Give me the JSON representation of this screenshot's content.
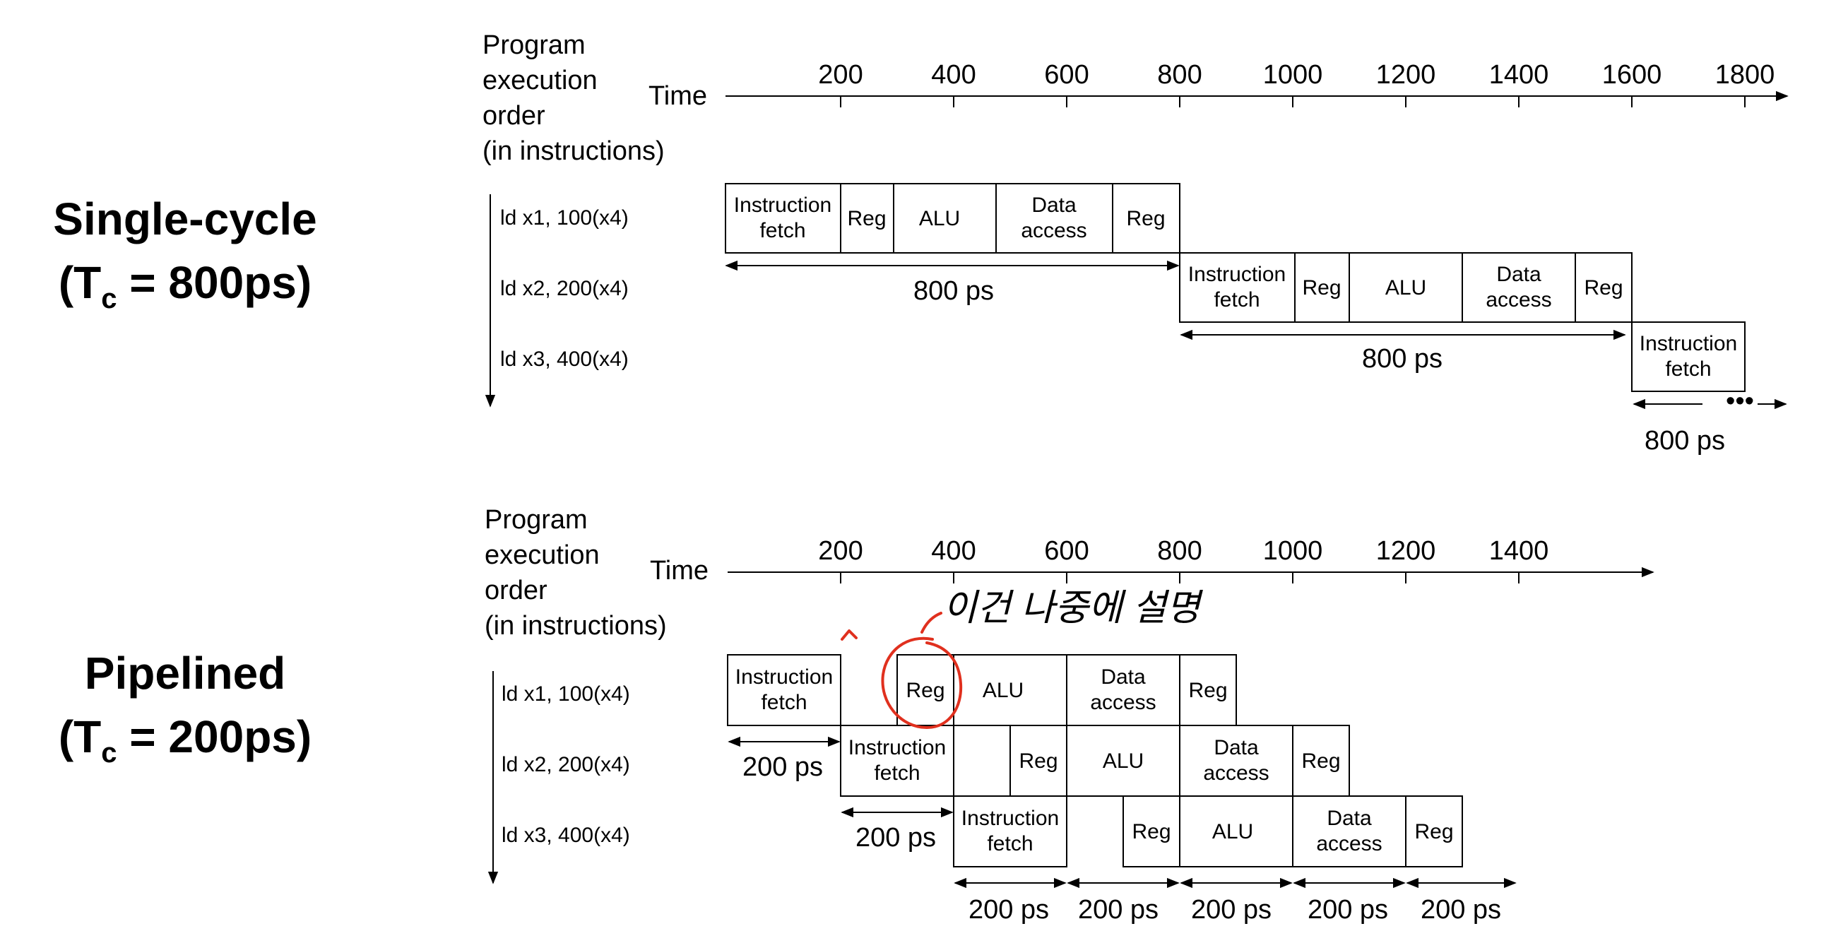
{
  "single_cycle": {
    "label": "Single-cycle",
    "tc_prefix": "(T",
    "tc_sub": "c",
    "tc_suffix": " = 800ps)",
    "header_lines": [
      "Program",
      "execution",
      "order",
      "(in instructions)"
    ],
    "time_label": "Time",
    "ticks": [
      "200",
      "400",
      "600",
      "800",
      "1000",
      "1200",
      "1400",
      "1600",
      "1800"
    ],
    "instructions": [
      "ld x1, 100(x4)",
      "ld x2, 200(x4)",
      "ld x3, 400(x4)"
    ],
    "stages": {
      "instruction_fetch": [
        "Instruction",
        "fetch"
      ],
      "reg": "Reg",
      "alu": "ALU",
      "data_access": [
        "Data",
        "access"
      ]
    },
    "durations": [
      "800 ps",
      "800 ps",
      "800 ps"
    ],
    "ellipsis": "•••"
  },
  "pipelined": {
    "label": "Pipelined",
    "tc_prefix": "(T",
    "tc_sub": "c",
    "tc_suffix": " = 200ps)",
    "header_lines": [
      "Program",
      "execution",
      "order",
      "(in instructions)"
    ],
    "time_label": "Time",
    "ticks": [
      "200",
      "400",
      "600",
      "800",
      "1000",
      "1200",
      "1400"
    ],
    "instructions": [
      "ld x1, 100(x4)",
      "ld x2, 200(x4)",
      "ld x3, 400(x4)"
    ],
    "stages": {
      "instruction_fetch": [
        "Instruction",
        "fetch"
      ],
      "reg": "Reg",
      "alu": "ALU",
      "data_access": [
        "Data",
        "access"
      ]
    },
    "durations": [
      "200 ps",
      "200 ps",
      "200 ps",
      "200 ps",
      "200 ps",
      "200 ps",
      "200 ps"
    ]
  },
  "annotation": {
    "text": "이건 나중에 설명",
    "color": "#e0301e"
  }
}
